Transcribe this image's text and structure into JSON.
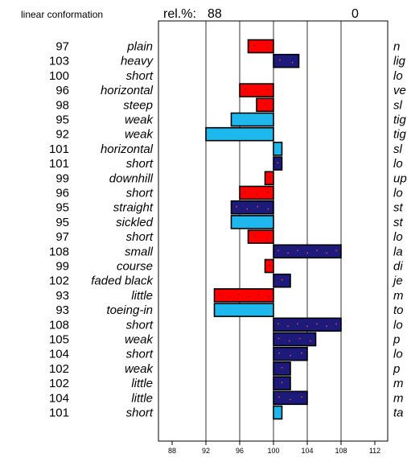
{
  "header": {
    "conformation_label": "linear conformation",
    "rel_label": "rel.%:",
    "rel_value": "88",
    "zero_label": "0"
  },
  "chart_data": {
    "type": "bar",
    "baseline": 100,
    "xlim": [
      88,
      112
    ],
    "x_ticks": [
      88,
      92,
      96,
      100,
      104,
      108,
      112
    ],
    "gridlines": [
      92,
      96,
      100,
      104,
      108
    ],
    "colors": {
      "positive": "#1c1a7a",
      "negative_strong": "#ff0000",
      "negative_soft": "#1fb8ee",
      "dot": "#ff3a3a"
    },
    "rows": [
      {
        "value": 97,
        "left_label": "plain",
        "right_label": "n",
        "color": "negative_strong"
      },
      {
        "value": 103,
        "left_label": "heavy",
        "right_label": "lig",
        "color": "positive"
      },
      {
        "value": 100,
        "left_label": "short",
        "right_label": "lo",
        "color": "none"
      },
      {
        "value": 96,
        "left_label": "horizontal",
        "right_label": "ve",
        "color": "negative_strong"
      },
      {
        "value": 98,
        "left_label": "steep",
        "right_label": "sl",
        "color": "negative_strong"
      },
      {
        "value": 95,
        "left_label": "weak",
        "right_label": "tig",
        "color": "negative_soft"
      },
      {
        "value": 92,
        "left_label": "weak",
        "right_label": "tig",
        "color": "negative_soft"
      },
      {
        "value": 101,
        "left_label": "horizontal",
        "right_label": "sl",
        "color": "negative_soft"
      },
      {
        "value": 101,
        "left_label": "short",
        "right_label": "lo",
        "color": "positive"
      },
      {
        "value": 99,
        "left_label": "downhill",
        "right_label": "up",
        "color": "negative_strong"
      },
      {
        "value": 96,
        "left_label": "short",
        "right_label": "lo",
        "color": "negative_strong"
      },
      {
        "value": 95,
        "left_label": "straight",
        "right_label": "st",
        "color": "positive"
      },
      {
        "value": 95,
        "left_label": "sickled",
        "right_label": "st",
        "color": "negative_soft"
      },
      {
        "value": 97,
        "left_label": "short",
        "right_label": "lo",
        "color": "negative_strong"
      },
      {
        "value": 108,
        "left_label": "small",
        "right_label": "la",
        "color": "positive"
      },
      {
        "value": 99,
        "left_label": "course",
        "right_label": "di",
        "color": "negative_strong"
      },
      {
        "value": 102,
        "left_label": "faded black",
        "right_label": "je",
        "color": "positive"
      },
      {
        "value": 93,
        "left_label": "little",
        "right_label": "m",
        "color": "negative_strong"
      },
      {
        "value": 93,
        "left_label": "toeing-in",
        "right_label": "to",
        "color": "negative_soft"
      },
      {
        "value": 108,
        "left_label": "short",
        "right_label": "lo",
        "color": "positive"
      },
      {
        "value": 105,
        "left_label": "weak",
        "right_label": "p",
        "color": "positive"
      },
      {
        "value": 104,
        "left_label": "short",
        "right_label": "lo",
        "color": "positive"
      },
      {
        "value": 102,
        "left_label": "weak",
        "right_label": "p",
        "color": "positive"
      },
      {
        "value": 102,
        "left_label": "little",
        "right_label": "m",
        "color": "positive"
      },
      {
        "value": 104,
        "left_label": "little",
        "right_label": "m",
        "color": "positive"
      },
      {
        "value": 101,
        "left_label": "short",
        "right_label": "ta",
        "color": "negative_soft"
      }
    ]
  }
}
